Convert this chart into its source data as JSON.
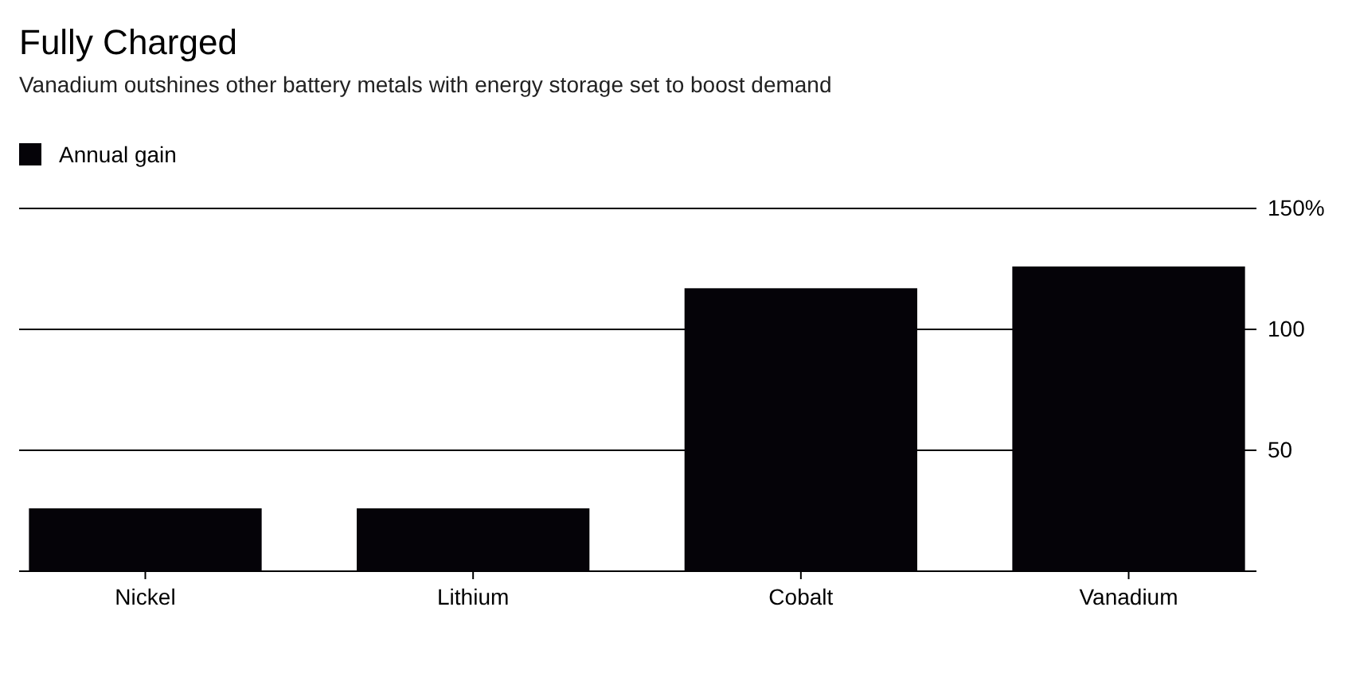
{
  "chart_data": {
    "type": "bar",
    "title": "Fully Charged",
    "subtitle": "Vanadium outshines other battery metals with energy storage set to boost demand",
    "categories": [
      "Nickel",
      "Lithium",
      "Cobalt",
      "Vanadium"
    ],
    "series": [
      {
        "name": "Annual gain",
        "color": "#050308",
        "values": [
          26,
          26,
          117,
          126
        ]
      }
    ],
    "ylim": [
      0,
      150
    ],
    "yticks": [
      {
        "value": 0,
        "label": null
      },
      50,
      100,
      {
        "value": 150,
        "label": "150%"
      }
    ],
    "grid": "y",
    "legend": "top left"
  }
}
